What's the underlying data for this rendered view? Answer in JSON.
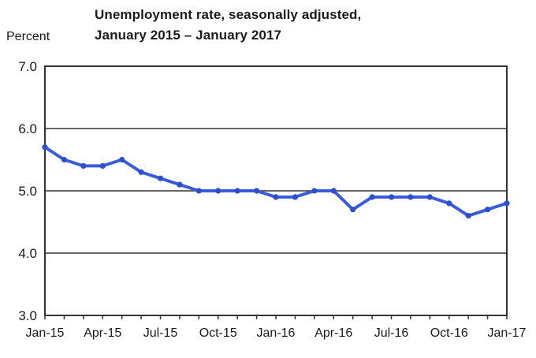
{
  "header": {
    "title_line1": "Unemployment rate, seasonally adjusted,",
    "title_line2": "January 2015 – January 2017",
    "y_axis_unit": "Percent"
  },
  "chart_data": {
    "type": "line",
    "title": "Unemployment rate, seasonally adjusted, January 2015 – January 2017",
    "xlabel": "",
    "ylabel": "Percent",
    "ylim": [
      3.0,
      7.0
    ],
    "y_ticks": [
      7.0,
      6.0,
      5.0,
      4.0,
      3.0
    ],
    "y_tick_labels": [
      "7.0",
      "6.0",
      "5.0",
      "4.0",
      "3.0"
    ],
    "grid": "horizontal gridlines at 6.0, 5.0, 4.0; full box border",
    "legend": "none",
    "x": [
      "Jan-15",
      "Feb-15",
      "Mar-15",
      "Apr-15",
      "May-15",
      "Jun-15",
      "Jul-15",
      "Aug-15",
      "Sep-15",
      "Oct-15",
      "Nov-15",
      "Dec-15",
      "Jan-16",
      "Feb-16",
      "Mar-16",
      "Apr-16",
      "May-16",
      "Jun-16",
      "Jul-16",
      "Aug-16",
      "Sep-16",
      "Oct-16",
      "Nov-16",
      "Dec-16",
      "Jan-17"
    ],
    "x_tick_labels": [
      "Jan-15",
      "Apr-15",
      "Jul-15",
      "Oct-15",
      "Jan-16",
      "Apr-16",
      "Jul-16",
      "Oct-16",
      "Jan-17"
    ],
    "series": [
      {
        "name": "Unemployment rate (percent)",
        "values": [
          5.7,
          5.5,
          5.4,
          5.4,
          5.5,
          5.3,
          5.2,
          5.1,
          5.0,
          5.0,
          5.0,
          5.0,
          4.9,
          4.9,
          5.0,
          5.0,
          4.7,
          4.9,
          4.9,
          4.9,
          4.9,
          4.8,
          4.6,
          4.7,
          4.8
        ]
      }
    ],
    "colors": {
      "line": "#3a5cdb",
      "marker": "#2d4fcd",
      "axis": "#333333",
      "text": "#1a1a1a"
    }
  }
}
